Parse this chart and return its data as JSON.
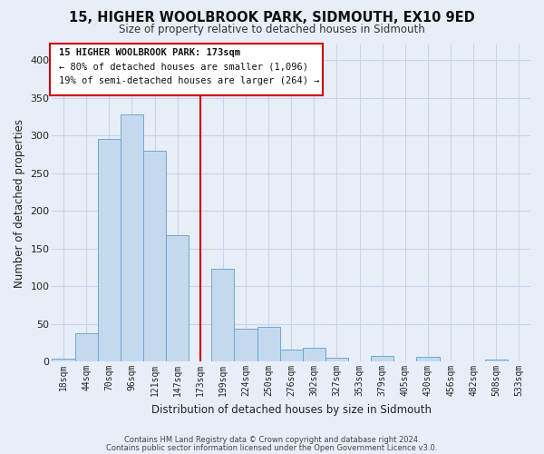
{
  "title": "15, HIGHER WOOLBROOK PARK, SIDMOUTH, EX10 9ED",
  "subtitle": "Size of property relative to detached houses in Sidmouth",
  "xlabel": "Distribution of detached houses by size in Sidmouth",
  "ylabel": "Number of detached properties",
  "bar_labels": [
    "18sqm",
    "44sqm",
    "70sqm",
    "96sqm",
    "121sqm",
    "147sqm",
    "173sqm",
    "199sqm",
    "224sqm",
    "250sqm",
    "276sqm",
    "302sqm",
    "327sqm",
    "353sqm",
    "379sqm",
    "405sqm",
    "430sqm",
    "456sqm",
    "482sqm",
    "508sqm",
    "533sqm"
  ],
  "bar_values": [
    4,
    37,
    295,
    328,
    280,
    168,
    0,
    123,
    44,
    46,
    16,
    18,
    5,
    0,
    7,
    0,
    6,
    0,
    0,
    2,
    0
  ],
  "highlight_index": 6,
  "highlight_color": "#cc0000",
  "bar_color": "#c5d9ee",
  "bar_edge_color": "#6aaad4",
  "ylim": [
    0,
    420
  ],
  "yticks": [
    0,
    50,
    100,
    150,
    200,
    250,
    300,
    350,
    400
  ],
  "annotation_line1": "15 HIGHER WOOLBROOK PARK: 173sqm",
  "annotation_line2": "← 80% of detached houses are smaller (1,096)",
  "annotation_line3": "19% of semi-detached houses are larger (264) →",
  "footer1": "Contains HM Land Registry data © Crown copyright and database right 2024.",
  "footer2": "Contains public sector information licensed under the Open Government Licence v3.0.",
  "background_color": "#e8eef8",
  "grid_color": "#c8d4e8"
}
